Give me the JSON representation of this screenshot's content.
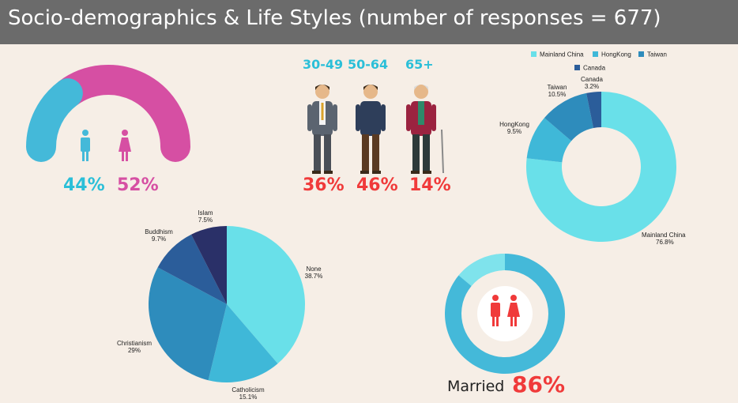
{
  "title": "Socio-demographics & Life Styles (number of responses = 677)",
  "colors": {
    "male": "#44b9d9",
    "female": "#d64fa3",
    "red": "#f03a3a",
    "cyan_text": "#2bbfd8"
  },
  "chart_data": [
    {
      "type": "pie",
      "name": "gender",
      "categories": [
        "Male",
        "Female"
      ],
      "values": [
        44,
        52
      ],
      "value_labels": [
        "44%",
        "52%"
      ]
    },
    {
      "type": "bar",
      "name": "age",
      "categories": [
        "30-49",
        "50-64",
        "65+"
      ],
      "values": [
        36,
        46,
        14
      ],
      "value_labels": [
        "36%",
        "46%",
        "14%"
      ]
    },
    {
      "type": "pie",
      "name": "region",
      "style": "donut",
      "legend": [
        "Mainland China",
        "HongKong",
        "Taiwan",
        "Canada"
      ],
      "legend_placement": "top",
      "slices": [
        {
          "label": "Mainland China",
          "pct_label": "76.8%",
          "value": 76.8,
          "color": "#69e0e9"
        },
        {
          "label": "HongKong",
          "pct_label": "9.5%",
          "value": 9.5,
          "color": "#3fb8d8"
        },
        {
          "label": "Taiwan",
          "pct_label": "10.5%",
          "value": 10.5,
          "color": "#2e8cbc"
        },
        {
          "label": "Canada",
          "pct_label": "3.2%",
          "value": 3.2,
          "color": "#2b5d9a"
        }
      ]
    },
    {
      "type": "pie",
      "name": "religion",
      "slices": [
        {
          "label": "None",
          "pct_label": "38.7%",
          "value": 38.7,
          "color": "#69e0e9"
        },
        {
          "label": "Catholicism",
          "pct_label": "15.1%",
          "value": 15.1,
          "color": "#3fb8d8"
        },
        {
          "label": "Christianism",
          "pct_label": "29%",
          "value": 29,
          "color": "#2e8cbc"
        },
        {
          "label": "Buddhism",
          "pct_label": "9.7%",
          "value": 9.7,
          "color": "#2b5d9a"
        },
        {
          "label": "Islam",
          "pct_label": "7.5%",
          "value": 7.5,
          "color": "#2a3068"
        }
      ]
    },
    {
      "type": "pie",
      "name": "marital",
      "style": "donut",
      "label": "Married",
      "value": 86,
      "value_label": "86%"
    }
  ]
}
